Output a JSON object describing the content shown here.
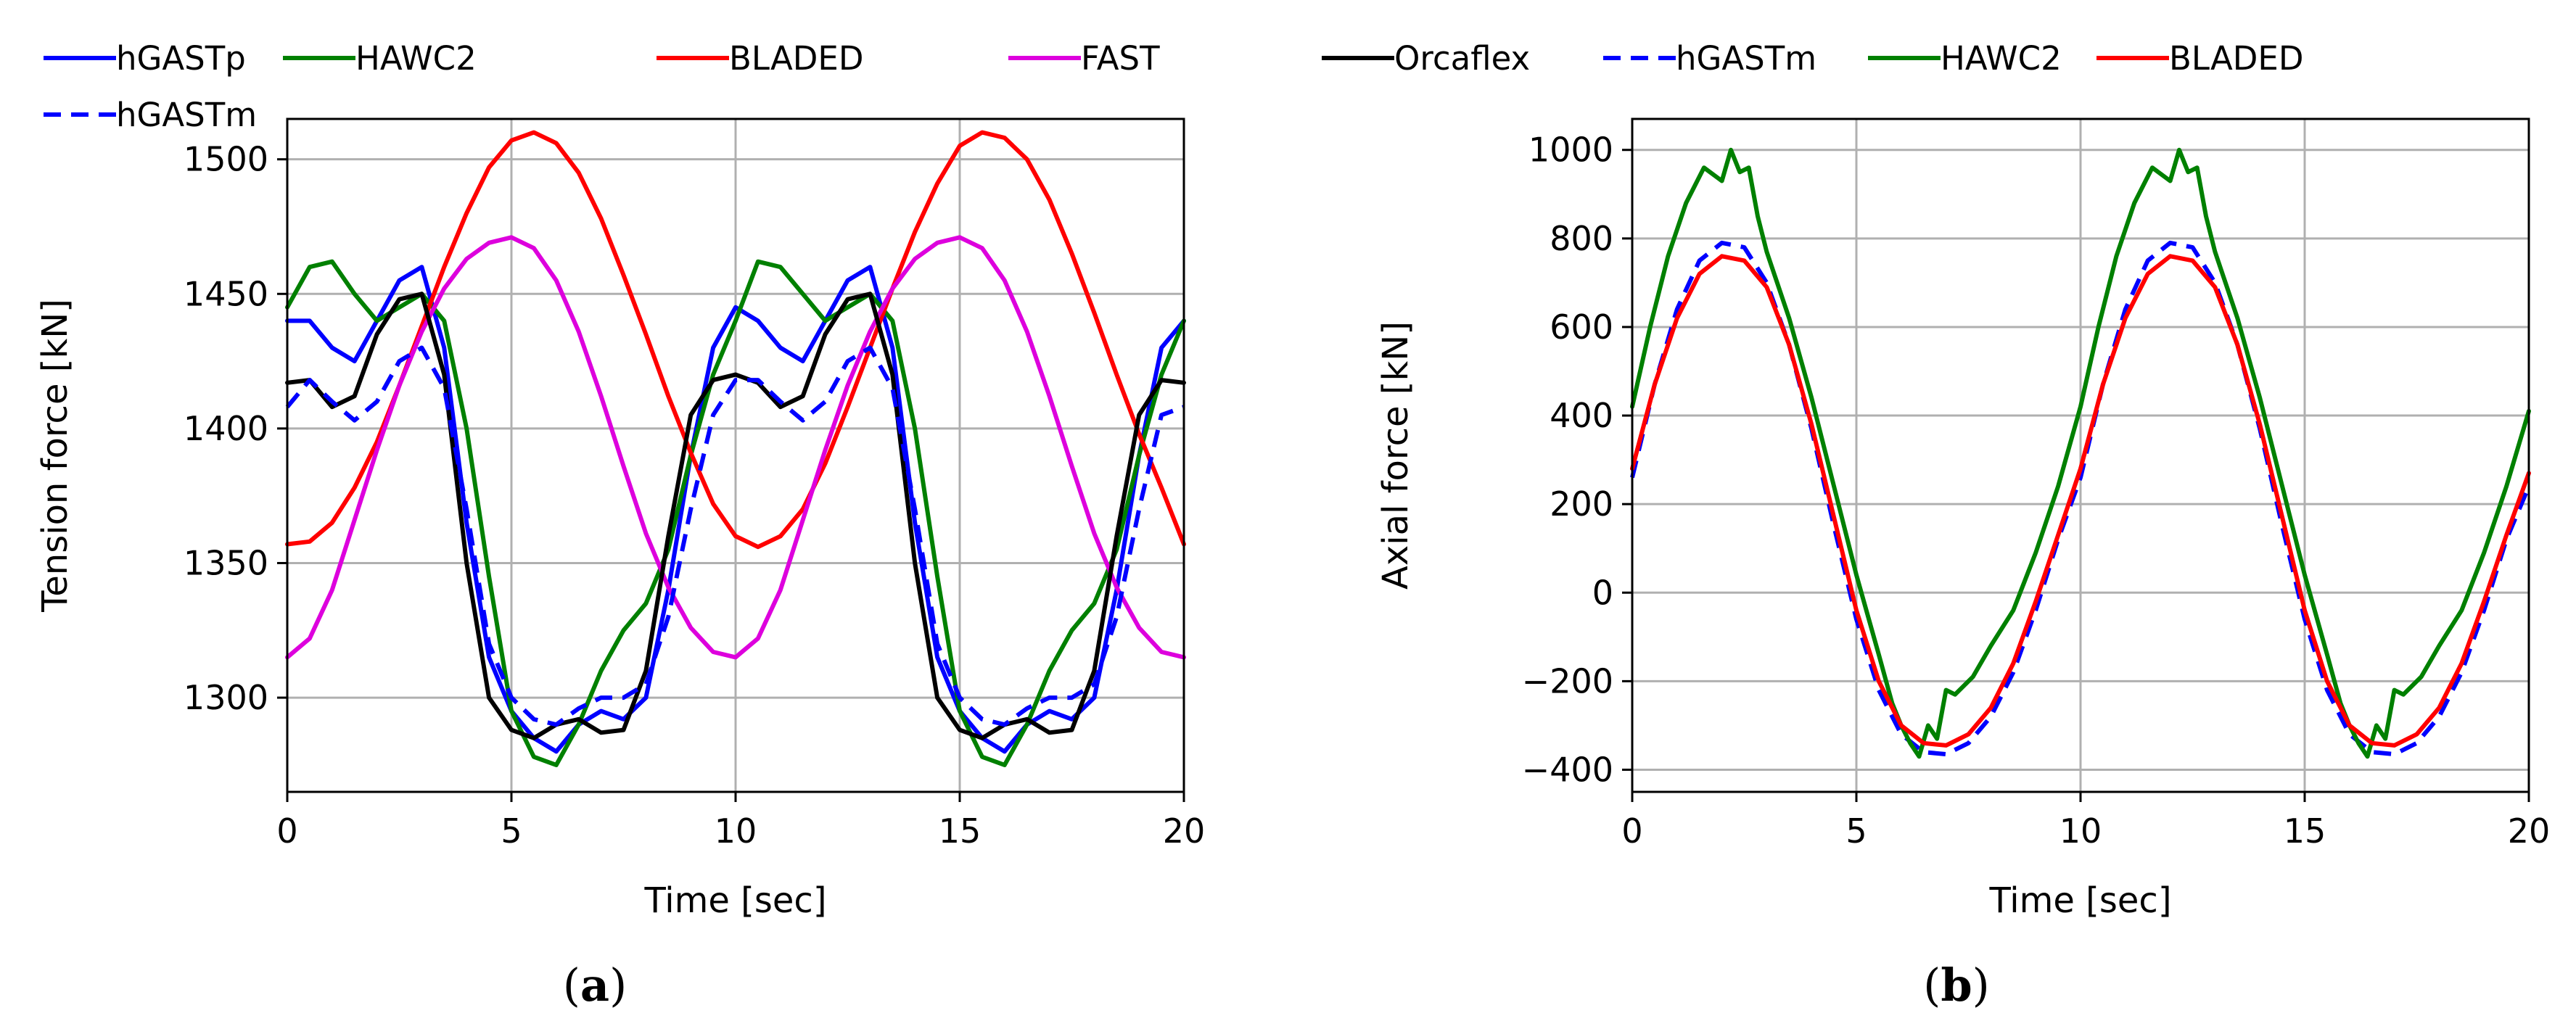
{
  "chart_data": [
    {
      "type": "line",
      "panel": "a",
      "caption_open": "(",
      "caption_letter": "a",
      "caption_close": ")",
      "xlabel": "Time [sec]",
      "ylabel": "Tension force [kN]",
      "xlim": [
        0,
        20
      ],
      "ylim": [
        1265,
        1515
      ],
      "xticks": [
        0,
        5,
        10,
        15,
        20
      ],
      "yticks": [
        1300,
        1350,
        1400,
        1450,
        1500
      ],
      "grid": true,
      "legend": [
        "hGASTp",
        "HAWC2",
        "BLADED",
        "FAST",
        "Orcaflex",
        "hGASTm"
      ],
      "series": [
        {
          "name": "hGASTp",
          "color": "#0000ff",
          "dash": "solid",
          "x": [
            0,
            0.5,
            1,
            1.5,
            2,
            2.5,
            3,
            3.5,
            4,
            4.5,
            5,
            5.5,
            6,
            6.5,
            7,
            7.5,
            8,
            8.5,
            9,
            9.5,
            10,
            10.5,
            11,
            11.5,
            12,
            12.5,
            13,
            13.5,
            14,
            14.5,
            15,
            15.5,
            16,
            16.5,
            17,
            17.5,
            18,
            18.5,
            19,
            19.5,
            20
          ],
          "y": [
            1440,
            1440,
            1430,
            1425,
            1440,
            1455,
            1460,
            1430,
            1365,
            1315,
            1295,
            1285,
            1280,
            1290,
            1295,
            1292,
            1300,
            1340,
            1390,
            1430,
            1445,
            1440,
            1430,
            1425,
            1440,
            1455,
            1460,
            1430,
            1365,
            1315,
            1295,
            1285,
            1280,
            1290,
            1295,
            1292,
            1300,
            1340,
            1390,
            1430,
            1440
          ]
        },
        {
          "name": "HAWC2",
          "color": "#008000",
          "dash": "solid",
          "x": [
            0,
            0.5,
            1,
            1.5,
            2,
            2.5,
            3,
            3.5,
            4,
            4.5,
            5,
            5.5,
            6,
            6.5,
            7,
            7.5,
            8,
            8.5,
            9,
            9.5,
            10,
            10.5,
            11,
            11.5,
            12,
            12.5,
            13,
            13.5,
            14,
            14.5,
            15,
            15.5,
            16,
            16.5,
            17,
            17.5,
            18,
            18.5,
            19,
            19.5,
            20
          ],
          "y": [
            1445,
            1460,
            1462,
            1450,
            1440,
            1445,
            1450,
            1440,
            1400,
            1345,
            1295,
            1278,
            1275,
            1290,
            1310,
            1325,
            1335,
            1355,
            1390,
            1420,
            1440,
            1462,
            1460,
            1450,
            1440,
            1445,
            1450,
            1440,
            1400,
            1345,
            1295,
            1278,
            1275,
            1290,
            1310,
            1325,
            1335,
            1355,
            1390,
            1420,
            1440
          ]
        },
        {
          "name": "BLADED",
          "color": "#ff0000",
          "dash": "solid",
          "x": [
            0,
            0.5,
            1,
            1.5,
            2,
            2.5,
            3,
            3.5,
            4,
            4.5,
            5,
            5.5,
            6,
            6.5,
            7,
            7.5,
            8,
            8.5,
            9,
            9.5,
            10,
            10.5,
            11,
            11.5,
            12,
            12.5,
            13,
            13.5,
            14,
            14.5,
            15,
            15.5,
            16,
            16.5,
            17,
            17.5,
            18,
            18.5,
            19,
            19.5,
            20
          ],
          "y": [
            1357,
            1358,
            1365,
            1378,
            1395,
            1416,
            1438,
            1460,
            1480,
            1497,
            1507,
            1510,
            1506,
            1495,
            1478,
            1457,
            1435,
            1412,
            1391,
            1372,
            1360,
            1356,
            1360,
            1370,
            1387,
            1408,
            1430,
            1452,
            1473,
            1491,
            1505,
            1510,
            1508,
            1500,
            1485,
            1465,
            1443,
            1420,
            1398,
            1378,
            1357
          ]
        },
        {
          "name": "FAST",
          "color": "#dd00dd",
          "dash": "solid",
          "x": [
            0,
            0.5,
            1,
            1.5,
            2,
            2.5,
            3,
            3.5,
            4,
            4.5,
            5,
            5.5,
            6,
            6.5,
            7,
            7.5,
            8,
            8.5,
            9,
            9.5,
            10,
            10.5,
            11,
            11.5,
            12,
            12.5,
            13,
            13.5,
            14,
            14.5,
            15,
            15.5,
            16,
            16.5,
            17,
            17.5,
            18,
            18.5,
            19,
            19.5,
            20
          ],
          "y": [
            1315,
            1322,
            1340,
            1366,
            1392,
            1416,
            1436,
            1452,
            1463,
            1469,
            1471,
            1467,
            1455,
            1436,
            1412,
            1386,
            1361,
            1341,
            1326,
            1317,
            1315,
            1322,
            1340,
            1366,
            1392,
            1416,
            1436,
            1452,
            1463,
            1469,
            1471,
            1467,
            1455,
            1436,
            1412,
            1386,
            1361,
            1341,
            1326,
            1317,
            1315
          ]
        },
        {
          "name": "Orcaflex",
          "color": "#000000",
          "dash": "solid",
          "x": [
            0,
            0.5,
            1,
            1.5,
            2,
            2.5,
            3,
            3.5,
            4,
            4.5,
            5,
            5.5,
            6,
            6.5,
            7,
            7.5,
            8,
            8.5,
            9,
            9.5,
            10,
            10.5,
            11,
            11.5,
            12,
            12.5,
            13,
            13.5,
            14,
            14.5,
            15,
            15.5,
            16,
            16.5,
            17,
            17.5,
            18,
            18.5,
            19,
            19.5,
            20
          ],
          "y": [
            1417,
            1418,
            1408,
            1412,
            1435,
            1448,
            1450,
            1420,
            1350,
            1300,
            1288,
            1285,
            1290,
            1292,
            1287,
            1288,
            1310,
            1360,
            1405,
            1418,
            1420,
            1417,
            1408,
            1412,
            1435,
            1448,
            1450,
            1420,
            1350,
            1300,
            1288,
            1285,
            1290,
            1292,
            1287,
            1288,
            1310,
            1360,
            1405,
            1418,
            1417
          ]
        },
        {
          "name": "hGASTm",
          "color": "#0000ff",
          "dash": "dashed",
          "x": [
            0,
            0.5,
            1,
            1.5,
            2,
            2.5,
            3,
            3.5,
            4,
            4.5,
            5,
            5.5,
            6,
            6.5,
            7,
            7.5,
            8,
            8.5,
            9,
            9.5,
            10,
            10.5,
            11,
            11.5,
            12,
            12.5,
            13,
            13.5,
            14,
            14.5,
            15,
            15.5,
            16,
            16.5,
            17,
            17.5,
            18,
            18.5,
            19,
            19.5,
            20
          ],
          "y": [
            1408,
            1418,
            1410,
            1403,
            1410,
            1425,
            1430,
            1415,
            1370,
            1320,
            1300,
            1292,
            1290,
            1296,
            1300,
            1300,
            1305,
            1330,
            1370,
            1405,
            1418,
            1418,
            1410,
            1403,
            1410,
            1425,
            1430,
            1415,
            1370,
            1320,
            1300,
            1292,
            1290,
            1296,
            1300,
            1300,
            1305,
            1330,
            1370,
            1405,
            1408
          ]
        }
      ]
    },
    {
      "type": "line",
      "panel": "b",
      "caption_open": "(",
      "caption_letter": "b",
      "caption_close": ")",
      "xlabel": "Time [sec]",
      "ylabel": "Axial force [kN]",
      "xlim": [
        0,
        20
      ],
      "ylim": [
        -450,
        1070
      ],
      "xticks": [
        0,
        5,
        10,
        15,
        20
      ],
      "yticks": [
        -400,
        -200,
        0,
        200,
        400,
        600,
        800,
        1000
      ],
      "grid": true,
      "legend": [
        "hGASTm",
        "HAWC2",
        "BLADED"
      ],
      "series": [
        {
          "name": "hGASTm",
          "color": "#0000ff",
          "dash": "dashed",
          "x": [
            0,
            0.5,
            1,
            1.5,
            2,
            2.5,
            3,
            3.5,
            4,
            4.5,
            5,
            5.5,
            6,
            6.5,
            7,
            7.5,
            8,
            8.5,
            9,
            9.5,
            10,
            10.5,
            11,
            11.5,
            12,
            12.5,
            13,
            13.5,
            14,
            14.5,
            15,
            15.5,
            16,
            16.5,
            17,
            17.5,
            18,
            18.5,
            19,
            19.5,
            20
          ],
          "y": [
            260,
            470,
            640,
            750,
            790,
            780,
            700,
            560,
            370,
            150,
            -60,
            -220,
            -320,
            -360,
            -365,
            -340,
            -280,
            -180,
            -40,
            120,
            260,
            470,
            640,
            750,
            790,
            780,
            700,
            560,
            370,
            150,
            -60,
            -220,
            -320,
            -360,
            -365,
            -340,
            -280,
            -180,
            -40,
            120,
            240
          ]
        },
        {
          "name": "HAWC2",
          "color": "#008000",
          "dash": "solid",
          "x": [
            0,
            0.4,
            0.8,
            1.2,
            1.6,
            2.0,
            2.2,
            2.4,
            2.6,
            2.8,
            3.0,
            3.5,
            4,
            4.5,
            5,
            5.5,
            5.8,
            6.0,
            6.2,
            6.4,
            6.6,
            6.8,
            7.0,
            7.2,
            7.6,
            8,
            8.5,
            9,
            9.5,
            10,
            10.4,
            10.8,
            11.2,
            11.6,
            12.0,
            12.2,
            12.4,
            12.6,
            12.8,
            13.0,
            13.5,
            14,
            14.5,
            15,
            15.5,
            15.8,
            16.0,
            16.2,
            16.4,
            16.6,
            16.8,
            17.0,
            17.2,
            17.6,
            18,
            18.5,
            19,
            19.5,
            20
          ],
          "y": [
            420,
            600,
            760,
            880,
            960,
            930,
            1000,
            950,
            960,
            850,
            770,
            620,
            440,
            240,
            40,
            -140,
            -250,
            -300,
            -340,
            -370,
            -300,
            -330,
            -220,
            -230,
            -190,
            -120,
            -40,
            90,
            240,
            420,
            600,
            760,
            880,
            960,
            930,
            1000,
            950,
            960,
            850,
            770,
            620,
            440,
            240,
            40,
            -140,
            -250,
            -300,
            -340,
            -370,
            -300,
            -330,
            -220,
            -230,
            -190,
            -120,
            -40,
            90,
            240,
            410
          ]
        },
        {
          "name": "BLADED",
          "color": "#ff0000",
          "dash": "solid",
          "x": [
            0,
            0.5,
            1,
            1.5,
            2,
            2.5,
            3,
            3.5,
            4,
            4.5,
            5,
            5.5,
            6,
            6.5,
            7,
            7.5,
            8,
            8.5,
            9,
            9.5,
            10,
            10.5,
            11,
            11.5,
            12,
            12.5,
            13,
            13.5,
            14,
            14.5,
            15,
            15.5,
            16,
            16.5,
            17,
            17.5,
            18,
            18.5,
            19,
            19.5,
            20
          ],
          "y": [
            280,
            470,
            620,
            720,
            760,
            750,
            690,
            560,
            380,
            170,
            -40,
            -200,
            -300,
            -340,
            -345,
            -320,
            -260,
            -160,
            -20,
            130,
            280,
            470,
            620,
            720,
            760,
            750,
            690,
            560,
            380,
            170,
            -40,
            -200,
            -300,
            -340,
            -345,
            -320,
            -260,
            -160,
            -20,
            130,
            270
          ]
        }
      ]
    }
  ]
}
